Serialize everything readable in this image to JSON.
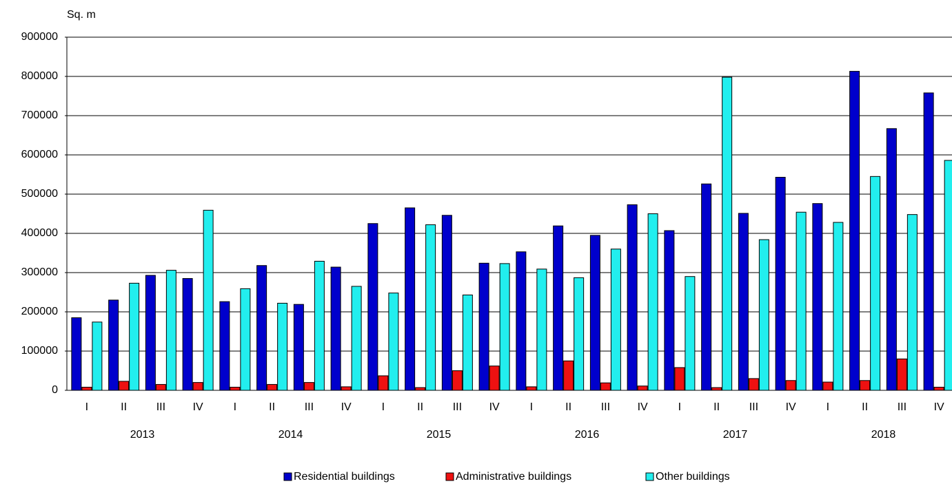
{
  "chart_data": {
    "type": "bar",
    "y_label": "Sq. m",
    "categories": [
      "I",
      "II",
      "III",
      "IV",
      "I",
      "II",
      "III",
      "IV",
      "I",
      "II",
      "III",
      "IV",
      "I",
      "II",
      "III",
      "IV",
      "I",
      "II",
      "III",
      "IV",
      "I",
      "II",
      "III",
      "IV"
    ],
    "groups": [
      "2013",
      "2014",
      "2015",
      "2016",
      "2017",
      "2018"
    ],
    "series": [
      {
        "name": "Residential buildings",
        "color": "#0000cc",
        "values": [
          185000,
          230000,
          293000,
          285000,
          226000,
          318000,
          219000,
          314000,
          425000,
          465000,
          446000,
          324000,
          353000,
          419000,
          395000,
          473000,
          407000,
          526000,
          451000,
          543000,
          476000,
          813000,
          667000,
          758000
        ]
      },
      {
        "name": "Administrative buildings",
        "color": "#ee1111",
        "values": [
          8000,
          23000,
          15000,
          20000,
          8000,
          15000,
          20000,
          9000,
          37000,
          7000,
          50000,
          62000,
          9000,
          75000,
          19000,
          11000,
          58000,
          7000,
          30000,
          25000,
          21000,
          25000,
          80000,
          8000
        ]
      },
      {
        "name": "Other buildings",
        "color": "#22eeee",
        "values": [
          174000,
          273000,
          306000,
          459000,
          259000,
          222000,
          329000,
          265000,
          248000,
          422000,
          243000,
          323000,
          309000,
          287000,
          360000,
          450000,
          290000,
          798000,
          384000,
          454000,
          428000,
          545000,
          448000,
          586000
        ]
      }
    ],
    "ylim": [
      0,
      900000
    ],
    "yticks": [
      0,
      100000,
      200000,
      300000,
      400000,
      500000,
      600000,
      700000,
      800000,
      900000
    ],
    "grid": true,
    "legend": "bottom"
  }
}
